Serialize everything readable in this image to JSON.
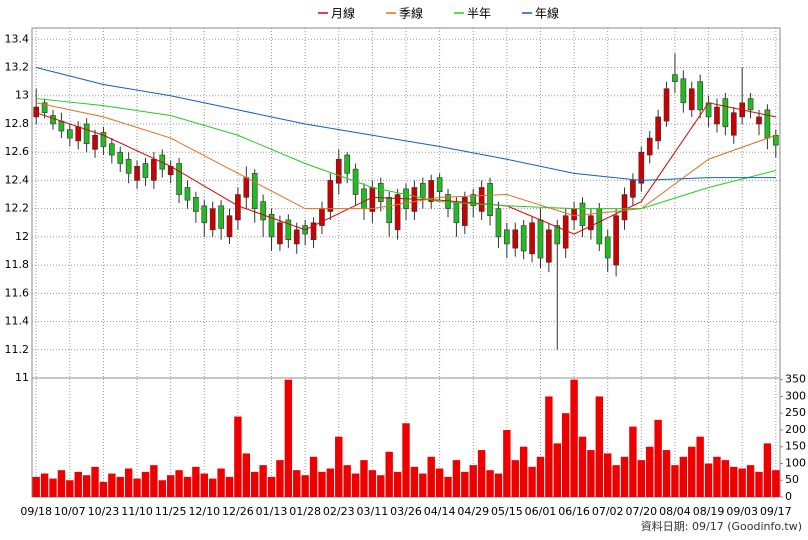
{
  "chart_data": {
    "type": "candlestick",
    "legend": "top",
    "footer": "資料日期: 09/17  (Goodinfo.tw)",
    "xlim": [
      -0.5,
      88.5
    ],
    "xticks": [
      {
        "value": 0,
        "label": "09/18"
      },
      {
        "value": 4,
        "label": "10/07"
      },
      {
        "value": 8,
        "label": "10/23"
      },
      {
        "value": 12,
        "label": "11/10"
      },
      {
        "value": 16,
        "label": "11/25"
      },
      {
        "value": 20,
        "label": "12/10"
      },
      {
        "value": 24,
        "label": "12/26"
      },
      {
        "value": 28,
        "label": "01/13"
      },
      {
        "value": 32,
        "label": "01/28"
      },
      {
        "value": 36,
        "label": "02/23"
      },
      {
        "value": 40,
        "label": "03/11"
      },
      {
        "value": 44,
        "label": "03/26"
      },
      {
        "value": 48,
        "label": "04/14"
      },
      {
        "value": 52,
        "label": "04/29"
      },
      {
        "value": 56,
        "label": "05/15"
      },
      {
        "value": 60,
        "label": "06/01"
      },
      {
        "value": 64,
        "label": "06/16"
      },
      {
        "value": 68,
        "label": "07/02"
      },
      {
        "value": 72,
        "label": "07/20"
      },
      {
        "value": 76,
        "label": "08/04"
      },
      {
        "value": 80,
        "label": "08/19"
      },
      {
        "value": 84,
        "label": "09/03"
      },
      {
        "value": 88,
        "label": "09/17"
      }
    ],
    "ylim": [
      11,
      13.48
    ],
    "yticks": [
      11,
      11.2,
      11.4,
      11.6,
      11.8,
      12,
      12.2,
      12.4,
      12.6,
      12.8,
      13,
      13.2,
      13.4
    ],
    "y2lim": [
      0,
      355
    ],
    "y2ticks": [
      0,
      50,
      100,
      150,
      200,
      250,
      300,
      350
    ],
    "up_color": "#cc0000",
    "down_color": "#22bb22",
    "volume_color": "#ee0000",
    "candles": {
      "open": [
        12.85,
        12.95,
        12.86,
        12.82,
        12.76,
        12.68,
        12.8,
        12.62,
        12.74,
        12.66,
        12.6,
        12.55,
        12.4,
        12.52,
        12.4,
        12.58,
        12.44,
        12.52,
        12.35,
        12.28,
        12.22,
        12.05,
        12.22,
        12.0,
        12.12,
        12.28,
        12.45,
        12.25,
        12.16,
        11.95,
        12.12,
        11.95,
        12.08,
        11.98,
        12.08,
        12.18,
        12.38,
        12.58,
        12.48,
        12.34,
        12.18,
        12.38,
        12.28,
        12.05,
        12.34,
        12.18,
        12.38,
        12.25,
        12.42,
        12.3,
        12.24,
        12.08,
        12.3,
        12.18,
        12.38,
        12.2,
        12.05,
        11.92,
        12.08,
        11.88,
        12.12,
        11.82,
        12.08,
        11.92,
        12.12,
        12.24,
        12.05,
        12.2,
        12.0,
        11.8,
        12.12,
        12.28,
        12.38,
        12.58,
        12.68,
        12.82,
        13.15,
        13.12,
        12.9,
        13.1,
        12.95,
        12.8,
        12.98,
        12.72,
        12.85,
        12.98,
        12.8,
        12.9,
        12.72
      ],
      "high": [
        13.05,
        12.98,
        12.9,
        12.88,
        12.8,
        12.82,
        12.84,
        12.76,
        12.78,
        12.7,
        12.64,
        12.6,
        12.54,
        12.56,
        12.6,
        12.62,
        12.54,
        12.56,
        12.4,
        12.32,
        12.26,
        12.25,
        12.26,
        12.2,
        12.35,
        12.5,
        12.48,
        12.3,
        12.2,
        12.15,
        12.16,
        12.1,
        12.12,
        12.14,
        12.25,
        12.45,
        12.62,
        12.6,
        12.52,
        12.38,
        12.4,
        12.42,
        12.32,
        12.34,
        12.38,
        12.4,
        12.42,
        12.44,
        12.45,
        12.34,
        12.28,
        12.32,
        12.34,
        12.4,
        12.42,
        12.25,
        12.1,
        12.1,
        12.12,
        12.14,
        12.2,
        12.1,
        12.12,
        12.2,
        12.25,
        12.28,
        12.2,
        12.24,
        12.05,
        12.2,
        12.35,
        12.45,
        12.64,
        12.75,
        12.9,
        13.1,
        13.3,
        13.18,
        13.1,
        13.15,
        13.0,
        12.98,
        13.02,
        12.92,
        13.2,
        13.02,
        12.9,
        12.94,
        12.76
      ],
      "low": [
        12.8,
        12.84,
        12.76,
        12.7,
        12.64,
        12.62,
        12.6,
        12.56,
        12.58,
        12.52,
        12.46,
        12.38,
        12.34,
        12.36,
        12.34,
        12.42,
        12.38,
        12.24,
        12.2,
        12.1,
        12.0,
        12.0,
        11.98,
        11.95,
        12.05,
        12.2,
        12.1,
        12.0,
        11.9,
        11.9,
        11.92,
        11.88,
        11.94,
        11.92,
        12.02,
        12.12,
        12.3,
        12.38,
        12.22,
        12.12,
        12.1,
        12.18,
        12.0,
        11.98,
        12.12,
        12.12,
        12.2,
        12.2,
        12.26,
        12.14,
        12.0,
        12.02,
        12.14,
        12.12,
        12.08,
        11.92,
        11.85,
        11.86,
        11.84,
        11.82,
        11.78,
        11.75,
        11.2,
        11.85,
        12.05,
        12.0,
        11.98,
        11.9,
        11.75,
        11.72,
        12.05,
        12.22,
        12.32,
        12.52,
        12.62,
        12.78,
        13.02,
        12.88,
        12.85,
        12.84,
        12.78,
        12.74,
        12.72,
        12.66,
        12.8,
        12.84,
        12.72,
        12.62,
        12.56
      ],
      "close": [
        12.92,
        12.88,
        12.8,
        12.75,
        12.7,
        12.78,
        12.66,
        12.72,
        12.64,
        12.58,
        12.52,
        12.45,
        12.5,
        12.42,
        12.55,
        12.48,
        12.5,
        12.3,
        12.26,
        12.18,
        12.1,
        12.2,
        12.06,
        12.15,
        12.3,
        12.42,
        12.2,
        12.12,
        12.0,
        12.1,
        11.98,
        12.05,
        12.02,
        12.1,
        12.2,
        12.4,
        12.55,
        12.45,
        12.3,
        12.2,
        12.35,
        12.25,
        12.1,
        12.3,
        12.2,
        12.35,
        12.28,
        12.4,
        12.32,
        12.2,
        12.1,
        12.28,
        12.22,
        12.35,
        12.15,
        12.0,
        11.95,
        12.05,
        11.9,
        12.1,
        11.85,
        12.05,
        11.95,
        12.15,
        12.2,
        12.08,
        12.15,
        11.95,
        11.85,
        12.15,
        12.3,
        12.4,
        12.6,
        12.7,
        12.85,
        13.05,
        13.1,
        12.95,
        13.05,
        12.9,
        12.85,
        12.92,
        12.78,
        12.88,
        12.95,
        12.9,
        12.85,
        12.7,
        12.65
      ],
      "volume": [
        60,
        70,
        55,
        80,
        50,
        75,
        65,
        90,
        45,
        70,
        60,
        85,
        55,
        75,
        95,
        50,
        65,
        80,
        60,
        90,
        70,
        55,
        85,
        60,
        240,
        130,
        75,
        95,
        60,
        110,
        350,
        80,
        65,
        120,
        75,
        85,
        180,
        95,
        70,
        110,
        80,
        65,
        135,
        75,
        220,
        90,
        70,
        120,
        85,
        60,
        110,
        75,
        95,
        140,
        80,
        70,
        200,
        110,
        150,
        90,
        120,
        300,
        160,
        250,
        350,
        180,
        140,
        300,
        130,
        95,
        120,
        210,
        110,
        150,
        230,
        140,
        95,
        120,
        150,
        180,
        100,
        120,
        110,
        90,
        85,
        95,
        75,
        160,
        80
      ]
    },
    "series": [
      {
        "name": "月線",
        "color": "#dd0000",
        "x": [
          0,
          8,
          16,
          24,
          32,
          40,
          48,
          56,
          64,
          72,
          80,
          88
        ],
        "values": [
          12.88,
          12.72,
          12.5,
          12.22,
          12.05,
          12.28,
          12.26,
          12.22,
          12.02,
          12.25,
          12.95,
          12.85
        ]
      },
      {
        "name": "季線",
        "color": "#e07020",
        "x": [
          0,
          8,
          16,
          24,
          32,
          40,
          48,
          56,
          64,
          72,
          80,
          88
        ],
        "values": [
          12.95,
          12.85,
          12.7,
          12.45,
          12.2,
          12.2,
          12.28,
          12.3,
          12.15,
          12.2,
          12.55,
          12.72
        ]
      },
      {
        "name": "半年",
        "color": "#22cc22",
        "x": [
          0,
          8,
          16,
          24,
          32,
          40,
          48,
          56,
          64,
          72,
          80,
          88
        ],
        "values": [
          12.98,
          12.93,
          12.86,
          12.72,
          12.52,
          12.35,
          12.25,
          12.22,
          12.2,
          12.2,
          12.35,
          12.47
        ]
      },
      {
        "name": "年線",
        "color": "#1060c0",
        "x": [
          0,
          8,
          16,
          24,
          32,
          40,
          48,
          56,
          64,
          72,
          80,
          88
        ],
        "values": [
          13.2,
          13.08,
          13.0,
          12.9,
          12.8,
          12.72,
          12.64,
          12.55,
          12.45,
          12.4,
          12.42,
          12.42
        ]
      }
    ]
  }
}
